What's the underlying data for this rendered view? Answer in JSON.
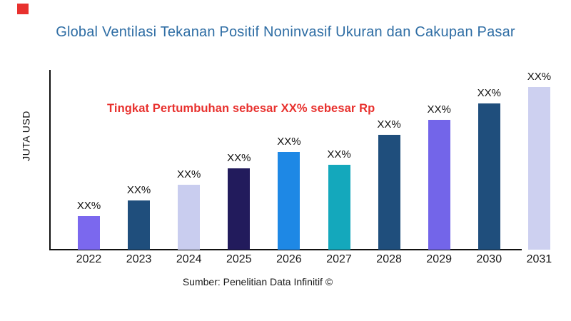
{
  "page": {
    "brand_square_color": "#e8312e"
  },
  "header": {
    "title": "Global Ventilasi Tekanan Positif Noninvasif Ukuran dan Cakupan Pasar",
    "title_color": "#2e6da4"
  },
  "annotation": {
    "text": "Tingkat Pertumbuhan sebesar XX% sebesar Rp",
    "color": "#e8312e"
  },
  "axes": {
    "y_label": "JUTA USD"
  },
  "source": {
    "text": "Sumber: Penelitian Data Infinitif ©"
  },
  "chart_data": {
    "type": "bar",
    "title": "Global Ventilasi Tekanan Positif Noninvasif Ukuran dan Cakupan Pasar",
    "xlabel": "",
    "ylabel": "JUTA USD",
    "categories": [
      "2022",
      "2023",
      "2024",
      "2025",
      "2026",
      "2027",
      "2028",
      "2029",
      "2030",
      "2031"
    ],
    "bar_value_labels": [
      "XX%",
      "XX%",
      "XX%",
      "XX%",
      "XX%",
      "XX%",
      "XX%",
      "XX%",
      "XX%",
      "XX%"
    ],
    "values_relative": [
      47,
      69,
      91,
      114,
      137,
      119,
      161,
      182,
      205,
      228
    ],
    "bar_colors": [
      "#7b68ee",
      "#1f4e7c",
      "#c9cdef",
      "#221b5c",
      "#1e88e5",
      "#14a8bc",
      "#1f4e7c",
      "#7365e9",
      "#1f4e7c",
      "#cdd0f0"
    ],
    "annotation": "Tingkat Pertumbuhan sebesar XX% sebesar Rp",
    "source_caption": "Sumber: Penelitian Data Infinitif ©",
    "grid": false,
    "legend_position": "none"
  }
}
